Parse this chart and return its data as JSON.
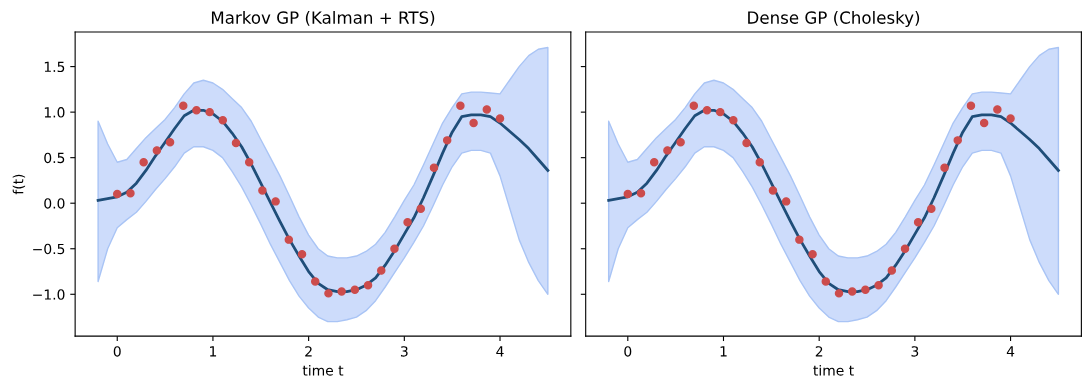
{
  "chart_data": [
    {
      "type": "line",
      "title": "Markov GP (Kalman + RTS)",
      "xlabel": "time t",
      "ylabel": "f(t)",
      "xlim": [
        -0.44,
        4.74
      ],
      "ylim": [
        -1.46,
        1.88
      ],
      "xticks": [
        0,
        1,
        2,
        3,
        4
      ],
      "yticks": [
        {
          "value": -1,
          "label": "−1.0"
        },
        {
          "value": -0.5,
          "label": "−0.5"
        },
        {
          "value": 0,
          "label": "0.0"
        },
        {
          "value": 0.5,
          "label": "0.5"
        },
        {
          "value": 1,
          "label": "1.0"
        },
        {
          "value": 1.5,
          "label": "1.5"
        }
      ],
      "series": [
        {
          "color": "#1f4e79",
          "x": [
            -0.2,
            -0.1,
            0,
            0.1,
            0.2,
            0.3,
            0.4,
            0.5,
            0.6,
            0.7,
            0.8,
            0.9,
            1.0,
            1.1,
            1.2,
            1.3,
            1.4,
            1.5,
            1.6,
            1.7,
            1.8,
            1.9,
            2.0,
            2.1,
            2.2,
            2.3,
            2.4,
            2.5,
            2.6,
            2.7,
            2.8,
            2.9,
            3.0,
            3.1,
            3.2,
            3.3,
            3.4,
            3.5,
            3.6,
            3.7,
            3.8,
            3.9,
            4.0,
            4.1,
            4.2,
            4.3,
            4.4,
            4.5
          ],
          "values": [
            0.03,
            0.05,
            0.07,
            0.12,
            0.22,
            0.36,
            0.52,
            0.67,
            0.82,
            0.96,
            1.02,
            1.02,
            0.98,
            0.9,
            0.77,
            0.62,
            0.43,
            0.22,
            0.01,
            -0.2,
            -0.4,
            -0.58,
            -0.75,
            -0.88,
            -0.95,
            -0.97,
            -0.97,
            -0.95,
            -0.9,
            -0.82,
            -0.68,
            -0.52,
            -0.34,
            -0.16,
            0.06,
            0.3,
            0.55,
            0.78,
            0.95,
            0.97,
            0.97,
            0.95,
            0.88,
            0.79,
            0.7,
            0.6,
            0.48,
            0.36
          ],
          "upper": [
            0.9,
            0.65,
            0.45,
            0.48,
            0.6,
            0.72,
            0.82,
            0.92,
            1.05,
            1.2,
            1.32,
            1.35,
            1.32,
            1.25,
            1.15,
            1.05,
            0.9,
            0.7,
            0.5,
            0.3,
            0.08,
            -0.15,
            -0.35,
            -0.5,
            -0.58,
            -0.6,
            -0.6,
            -0.58,
            -0.53,
            -0.45,
            -0.32,
            -0.15,
            0.03,
            0.2,
            0.42,
            0.65,
            0.88,
            1.05,
            1.2,
            1.22,
            1.22,
            1.21,
            1.2,
            1.35,
            1.5,
            1.62,
            1.69,
            1.71
          ],
          "lower": [
            -0.86,
            -0.5,
            -0.27,
            -0.18,
            -0.1,
            0.02,
            0.15,
            0.27,
            0.4,
            0.55,
            0.62,
            0.62,
            0.58,
            0.5,
            0.35,
            0.18,
            -0.02,
            -0.23,
            -0.45,
            -0.65,
            -0.85,
            -1.02,
            -1.15,
            -1.25,
            -1.3,
            -1.3,
            -1.28,
            -1.25,
            -1.18,
            -1.07,
            -0.92,
            -0.76,
            -0.6,
            -0.43,
            -0.25,
            -0.03,
            0.2,
            0.4,
            0.55,
            0.58,
            0.58,
            0.55,
            0.3,
            -0.05,
            -0.4,
            -0.65,
            -0.85,
            -1.0
          ]
        },
        {
          "type": "scatter",
          "color": "#cc4c4c",
          "marker": "circle",
          "x": [
            0,
            0.138,
            0.276,
            0.414,
            0.552,
            0.69,
            0.828,
            0.966,
            1.103,
            1.241,
            1.379,
            1.517,
            1.655,
            1.793,
            1.931,
            2.069,
            2.207,
            2.345,
            2.483,
            2.621,
            2.759,
            2.897,
            3.034,
            3.172,
            3.31,
            3.448,
            3.586,
            3.724,
            3.862,
            4.0
          ],
          "values": [
            0.1,
            0.11,
            0.45,
            0.58,
            0.67,
            1.07,
            1.02,
            1.0,
            0.91,
            0.66,
            0.45,
            0.14,
            0.02,
            -0.4,
            -0.56,
            -0.86,
            -0.99,
            -0.97,
            -0.95,
            -0.9,
            -0.74,
            -0.5,
            -0.21,
            -0.06,
            0.39,
            0.69,
            1.07,
            0.88,
            1.03,
            0.93
          ]
        }
      ]
    },
    {
      "type": "line",
      "title": "Dense GP (Cholesky)",
      "xlabel": "time t",
      "tick_labels": "x",
      "xlim": [
        -0.44,
        4.74
      ],
      "ylim": [
        -1.46,
        1.88
      ],
      "xticks": [
        0,
        1,
        2,
        3,
        4
      ],
      "yticks": [
        -1,
        -0.5,
        0,
        0.5,
        1,
        1.5
      ],
      "series": [
        {
          "color": "#1f4e79",
          "x": [
            -0.2,
            -0.1,
            0,
            0.1,
            0.2,
            0.3,
            0.4,
            0.5,
            0.6,
            0.7,
            0.8,
            0.9,
            1.0,
            1.1,
            1.2,
            1.3,
            1.4,
            1.5,
            1.6,
            1.7,
            1.8,
            1.9,
            2.0,
            2.1,
            2.2,
            2.3,
            2.4,
            2.5,
            2.6,
            2.7,
            2.8,
            2.9,
            3.0,
            3.1,
            3.2,
            3.3,
            3.4,
            3.5,
            3.6,
            3.7,
            3.8,
            3.9,
            4.0,
            4.1,
            4.2,
            4.3,
            4.4,
            4.5
          ],
          "values": [
            0.03,
            0.05,
            0.07,
            0.12,
            0.22,
            0.36,
            0.52,
            0.67,
            0.82,
            0.96,
            1.02,
            1.02,
            0.98,
            0.9,
            0.77,
            0.62,
            0.43,
            0.22,
            0.01,
            -0.2,
            -0.4,
            -0.58,
            -0.75,
            -0.88,
            -0.95,
            -0.97,
            -0.97,
            -0.95,
            -0.9,
            -0.82,
            -0.68,
            -0.52,
            -0.34,
            -0.16,
            0.06,
            0.3,
            0.55,
            0.78,
            0.95,
            0.97,
            0.97,
            0.95,
            0.88,
            0.79,
            0.7,
            0.6,
            0.48,
            0.36
          ],
          "upper": [
            0.9,
            0.65,
            0.45,
            0.48,
            0.6,
            0.72,
            0.82,
            0.92,
            1.05,
            1.2,
            1.32,
            1.35,
            1.32,
            1.25,
            1.15,
            1.05,
            0.9,
            0.7,
            0.5,
            0.3,
            0.08,
            -0.15,
            -0.35,
            -0.5,
            -0.58,
            -0.6,
            -0.6,
            -0.58,
            -0.53,
            -0.45,
            -0.32,
            -0.15,
            0.03,
            0.2,
            0.42,
            0.65,
            0.88,
            1.05,
            1.2,
            1.22,
            1.22,
            1.21,
            1.2,
            1.35,
            1.5,
            1.62,
            1.69,
            1.71
          ],
          "lower": [
            -0.86,
            -0.5,
            -0.27,
            -0.18,
            -0.1,
            0.02,
            0.15,
            0.27,
            0.4,
            0.55,
            0.62,
            0.62,
            0.58,
            0.5,
            0.35,
            0.18,
            -0.02,
            -0.23,
            -0.45,
            -0.65,
            -0.85,
            -1.02,
            -1.15,
            -1.25,
            -1.3,
            -1.3,
            -1.28,
            -1.25,
            -1.18,
            -1.07,
            -0.92,
            -0.76,
            -0.6,
            -0.43,
            -0.25,
            -0.03,
            0.2,
            0.4,
            0.55,
            0.58,
            0.58,
            0.55,
            0.3,
            -0.05,
            -0.4,
            -0.65,
            -0.85,
            -1.0
          ]
        },
        {
          "type": "scatter",
          "color": "#cc4c4c",
          "marker": "circle",
          "x": [
            0,
            0.138,
            0.276,
            0.414,
            0.552,
            0.69,
            0.828,
            0.966,
            1.103,
            1.241,
            1.379,
            1.517,
            1.655,
            1.793,
            1.931,
            2.069,
            2.207,
            2.345,
            2.483,
            2.621,
            2.759,
            2.897,
            3.034,
            3.172,
            3.31,
            3.448,
            3.586,
            3.724,
            3.862,
            4.0
          ],
          "values": [
            0.1,
            0.11,
            0.45,
            0.58,
            0.67,
            1.07,
            1.02,
            1.0,
            0.91,
            0.66,
            0.45,
            0.14,
            0.02,
            -0.4,
            -0.56,
            -0.86,
            -0.99,
            -0.97,
            -0.95,
            -0.9,
            -0.74,
            -0.5,
            -0.21,
            -0.06,
            0.39,
            0.69,
            1.07,
            0.88,
            1.03,
            0.93
          ]
        }
      ]
    }
  ]
}
